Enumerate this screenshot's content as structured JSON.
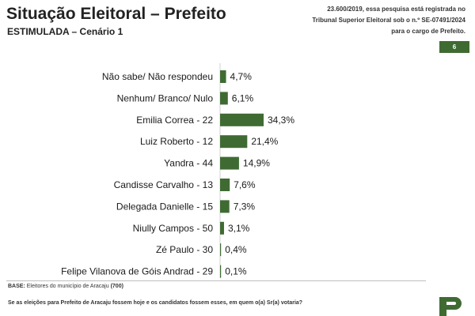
{
  "header": {
    "title": "Situação Eleitoral – Prefeito",
    "subtitle": "ESTIMULADA – Cenário 1",
    "registration_note": "23.600/2019, essa pesquisa está registrada no Tribunal Superior Eleitoral sob o n.º SE-07491/2024 para o cargo de Prefeito.",
    "page_number": "6"
  },
  "footer": {
    "base_label": "BASE:",
    "base_text": " Eleitores do município de Aracaju ",
    "base_count": "(700)",
    "question": "Se as eleições para Prefeito de Aracaju fossem hoje e os candidatos fossem esses, em quem o(a) Sr(a) votaria?"
  },
  "colors": {
    "bar": "#3f6b33",
    "badge": "#3f6b33"
  },
  "chart_data": {
    "type": "bar",
    "orientation": "horizontal",
    "categories": [
      "Não sabe/ Não respondeu",
      "Nenhum/ Branco/ Nulo",
      "Emilia Correa - 22",
      "Luiz Roberto - 12",
      "Yandra - 44",
      "Candisse Carvalho - 13",
      "Delegada Danielle - 15",
      "Niully Campos - 50",
      "Zé Paulo - 30",
      "Felipe Vilanova de Góis Andrad - 29"
    ],
    "values": [
      4.7,
      6.1,
      34.3,
      21.4,
      14.9,
      7.6,
      7.3,
      3.1,
      0.4,
      0.1
    ],
    "value_labels": [
      "4,7%",
      "6,1%",
      "34,3%",
      "21,4%",
      "14,9%",
      "7,6%",
      "7,3%",
      "3,1%",
      "0,4%",
      "0,1%"
    ],
    "unit": "%",
    "grid": false,
    "legend": "none"
  }
}
